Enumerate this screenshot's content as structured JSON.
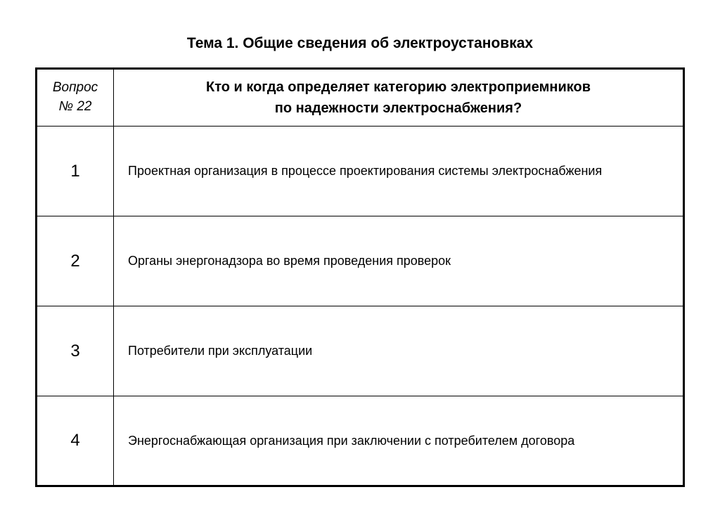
{
  "title": "Тема 1. Общие сведения об электроустановках",
  "question": {
    "label_line1": "Вопрос",
    "label_line2": "№ 22",
    "text_line1": "Кто и когда определяет категорию электроприемников",
    "text_line2": "по надежности электроснабжения?"
  },
  "answers": [
    {
      "num": "1",
      "text": "Проектная организация в процессе проектирования системы электроснабжения"
    },
    {
      "num": "2",
      "text": "Органы энергонадзора во время проведения проверок"
    },
    {
      "num": "3",
      "text": "Потребители при эксплуатации"
    },
    {
      "num": "4",
      "text": "Энергоснабжающая организация при заключении с потребителем договора"
    }
  ],
  "styling": {
    "background_color": "#ffffff",
    "text_color": "#000000",
    "border_color": "#000000",
    "outer_border_width": 3,
    "inner_border_width": 1.5,
    "title_fontsize": 21,
    "title_fontweight": "bold",
    "question_label_fontsize": 19,
    "question_label_style": "italic",
    "question_text_fontsize": 20,
    "question_text_fontweight": "bold",
    "answer_num_fontsize": 24,
    "answer_text_fontsize": 18,
    "left_col_width": 110,
    "header_row_height": 75,
    "answer_row_height": 128,
    "font_family": "Arial"
  }
}
